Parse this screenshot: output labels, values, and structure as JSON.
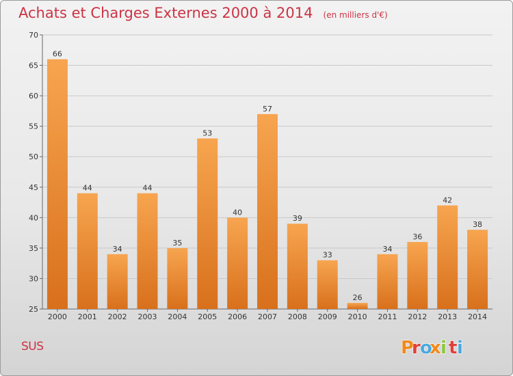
{
  "header": {
    "title": "Achats et Charges Externes 2000 à 2014",
    "unit": "(en milliers d'€)"
  },
  "footer": {
    "commune": "SUS",
    "logo_text": "Proxiti"
  },
  "colors": {
    "title": "#cc3344",
    "bar_top": "#f7a550",
    "bar_bottom": "#d8701c",
    "logo": [
      "#f08a1c",
      "#e0403a",
      "#4aa9de",
      "#f08a1c",
      "#8cc63e",
      "#e0403a",
      "#4aa9de"
    ]
  },
  "chart_data": {
    "type": "bar",
    "title": "Achats et Charges Externes 2000 à 2014",
    "subtitle": "(en milliers d'€)",
    "categories": [
      "2000",
      "2001",
      "2002",
      "2003",
      "2004",
      "2005",
      "2006",
      "2007",
      "2008",
      "2009",
      "2010",
      "2011",
      "2012",
      "2013",
      "2014"
    ],
    "values": [
      66,
      44,
      34,
      44,
      35,
      53,
      40,
      57,
      39,
      33,
      26,
      34,
      36,
      42,
      38
    ],
    "ylim": [
      25,
      70
    ],
    "yticks": [
      25,
      30,
      35,
      40,
      45,
      50,
      55,
      60,
      65,
      70
    ],
    "grid": true,
    "xlabel": "",
    "ylabel": ""
  }
}
